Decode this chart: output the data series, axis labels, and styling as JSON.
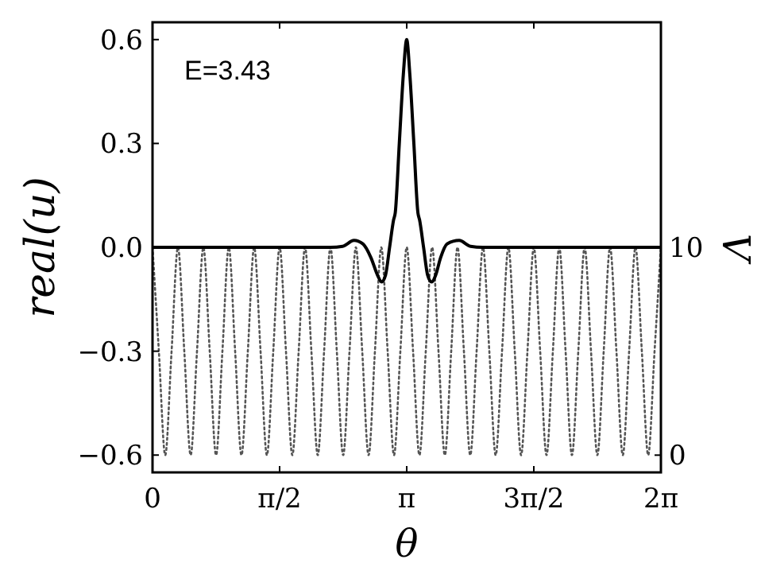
{
  "chart_data": {
    "type": "line",
    "xlabel": "θ",
    "ylabel": "real(u)",
    "y2label": "V",
    "annotations": [
      "E=3.43"
    ],
    "xlim": [
      0,
      6.2832
    ],
    "xticks": [
      {
        "value": 0,
        "label": "0"
      },
      {
        "value": 1.5708,
        "label": "π/2"
      },
      {
        "value": 3.1416,
        "label": "π"
      },
      {
        "value": 4.7124,
        "label": "3π/2"
      },
      {
        "value": 6.2832,
        "label": "2π"
      }
    ],
    "ylim": [
      -0.65,
      0.65
    ],
    "yticks": [
      {
        "value": -0.6,
        "label": "−0.6"
      },
      {
        "value": -0.3,
        "label": "−0.3"
      },
      {
        "value": 0,
        "label": "0.0"
      },
      {
        "value": 0.3,
        "label": "0.3"
      },
      {
        "value": 0.6,
        "label": "0.6"
      }
    ],
    "y2lim": [
      -0.83,
      20.83
    ],
    "y2ticks": [
      0,
      10
    ],
    "grid": false,
    "series": [
      {
        "color": "#000000",
        "line_style": "solid",
        "x": [
          0,
          1.0,
          2.0,
          2.2,
          2.35,
          2.49,
          2.6,
          2.7,
          2.78,
          2.83,
          2.88,
          2.93,
          2.98,
          3.0,
          3.05,
          3.1,
          3.1416,
          3.18,
          3.23,
          3.28,
          3.3,
          3.35,
          3.4,
          3.45,
          3.5,
          3.56,
          3.64,
          3.79,
          3.93,
          4.08,
          4.3,
          5.3,
          6.2832
        ],
        "values": [
          0,
          0,
          0,
          0,
          0.003,
          0.02,
          0.01,
          -0.03,
          -0.08,
          -0.1,
          -0.08,
          0,
          0.08,
          0.1,
          0.3,
          0.5,
          0.6,
          0.5,
          0.3,
          0.1,
          0.08,
          0,
          -0.08,
          -0.1,
          -0.08,
          -0.03,
          0.01,
          0.02,
          0.003,
          0,
          0,
          0,
          0
        ]
      },
      {
        "color": "#555555",
        "line_style": "dotted",
        "axis": "y2",
        "x": [
          0,
          0.0785,
          0.1571,
          0.2356,
          0.3142,
          0.3927,
          0.4712,
          0.5498,
          0.6283,
          0.7069,
          0.7854,
          0.8639,
          0.9425,
          1.021,
          1.0996,
          1.1781,
          1.2566,
          1.3352,
          1.4137,
          1.4923,
          1.5708,
          1.6493,
          1.7279,
          1.8064,
          1.885,
          1.9635,
          2.042,
          2.1206,
          2.1991,
          2.2777,
          2.3562,
          2.4347,
          2.5133,
          2.5918,
          2.6704,
          2.7489,
          2.8274,
          2.906,
          2.9845,
          3.0631,
          3.1416,
          3.2201,
          3.2987,
          3.3772,
          3.4558,
          3.5343,
          3.6128,
          3.6914,
          3.7699,
          3.8485,
          3.927,
          4.0055,
          4.0841,
          4.1626,
          4.2412,
          4.3197,
          4.3982,
          4.4768,
          4.5553,
          4.6339,
          4.7124,
          4.7909,
          4.8695,
          4.948,
          5.0265,
          5.1051,
          5.1836,
          5.2622,
          5.3407,
          5.4193,
          5.4978,
          5.5763,
          5.6549,
          5.7334,
          5.812,
          5.8905,
          5.969,
          6.0476,
          6.1261,
          6.2047,
          6.2832
        ],
        "values": [
          10,
          5,
          0,
          5,
          10,
          5,
          0,
          5,
          10,
          5,
          0,
          5,
          10,
          5,
          0,
          5,
          10,
          5,
          0,
          5,
          10,
          5,
          0,
          5,
          10,
          5,
          0,
          5,
          10,
          5,
          0,
          5,
          10,
          5,
          0,
          5,
          10,
          5,
          0,
          5,
          10,
          5,
          0,
          5,
          10,
          5,
          0,
          5,
          10,
          5,
          0,
          5,
          10,
          5,
          0,
          5,
          10,
          5,
          0,
          5,
          10,
          5,
          0,
          5,
          10,
          5,
          0,
          5,
          10,
          5,
          0,
          5,
          10,
          5,
          0,
          5,
          10,
          5,
          0,
          5,
          10
        ]
      }
    ]
  }
}
